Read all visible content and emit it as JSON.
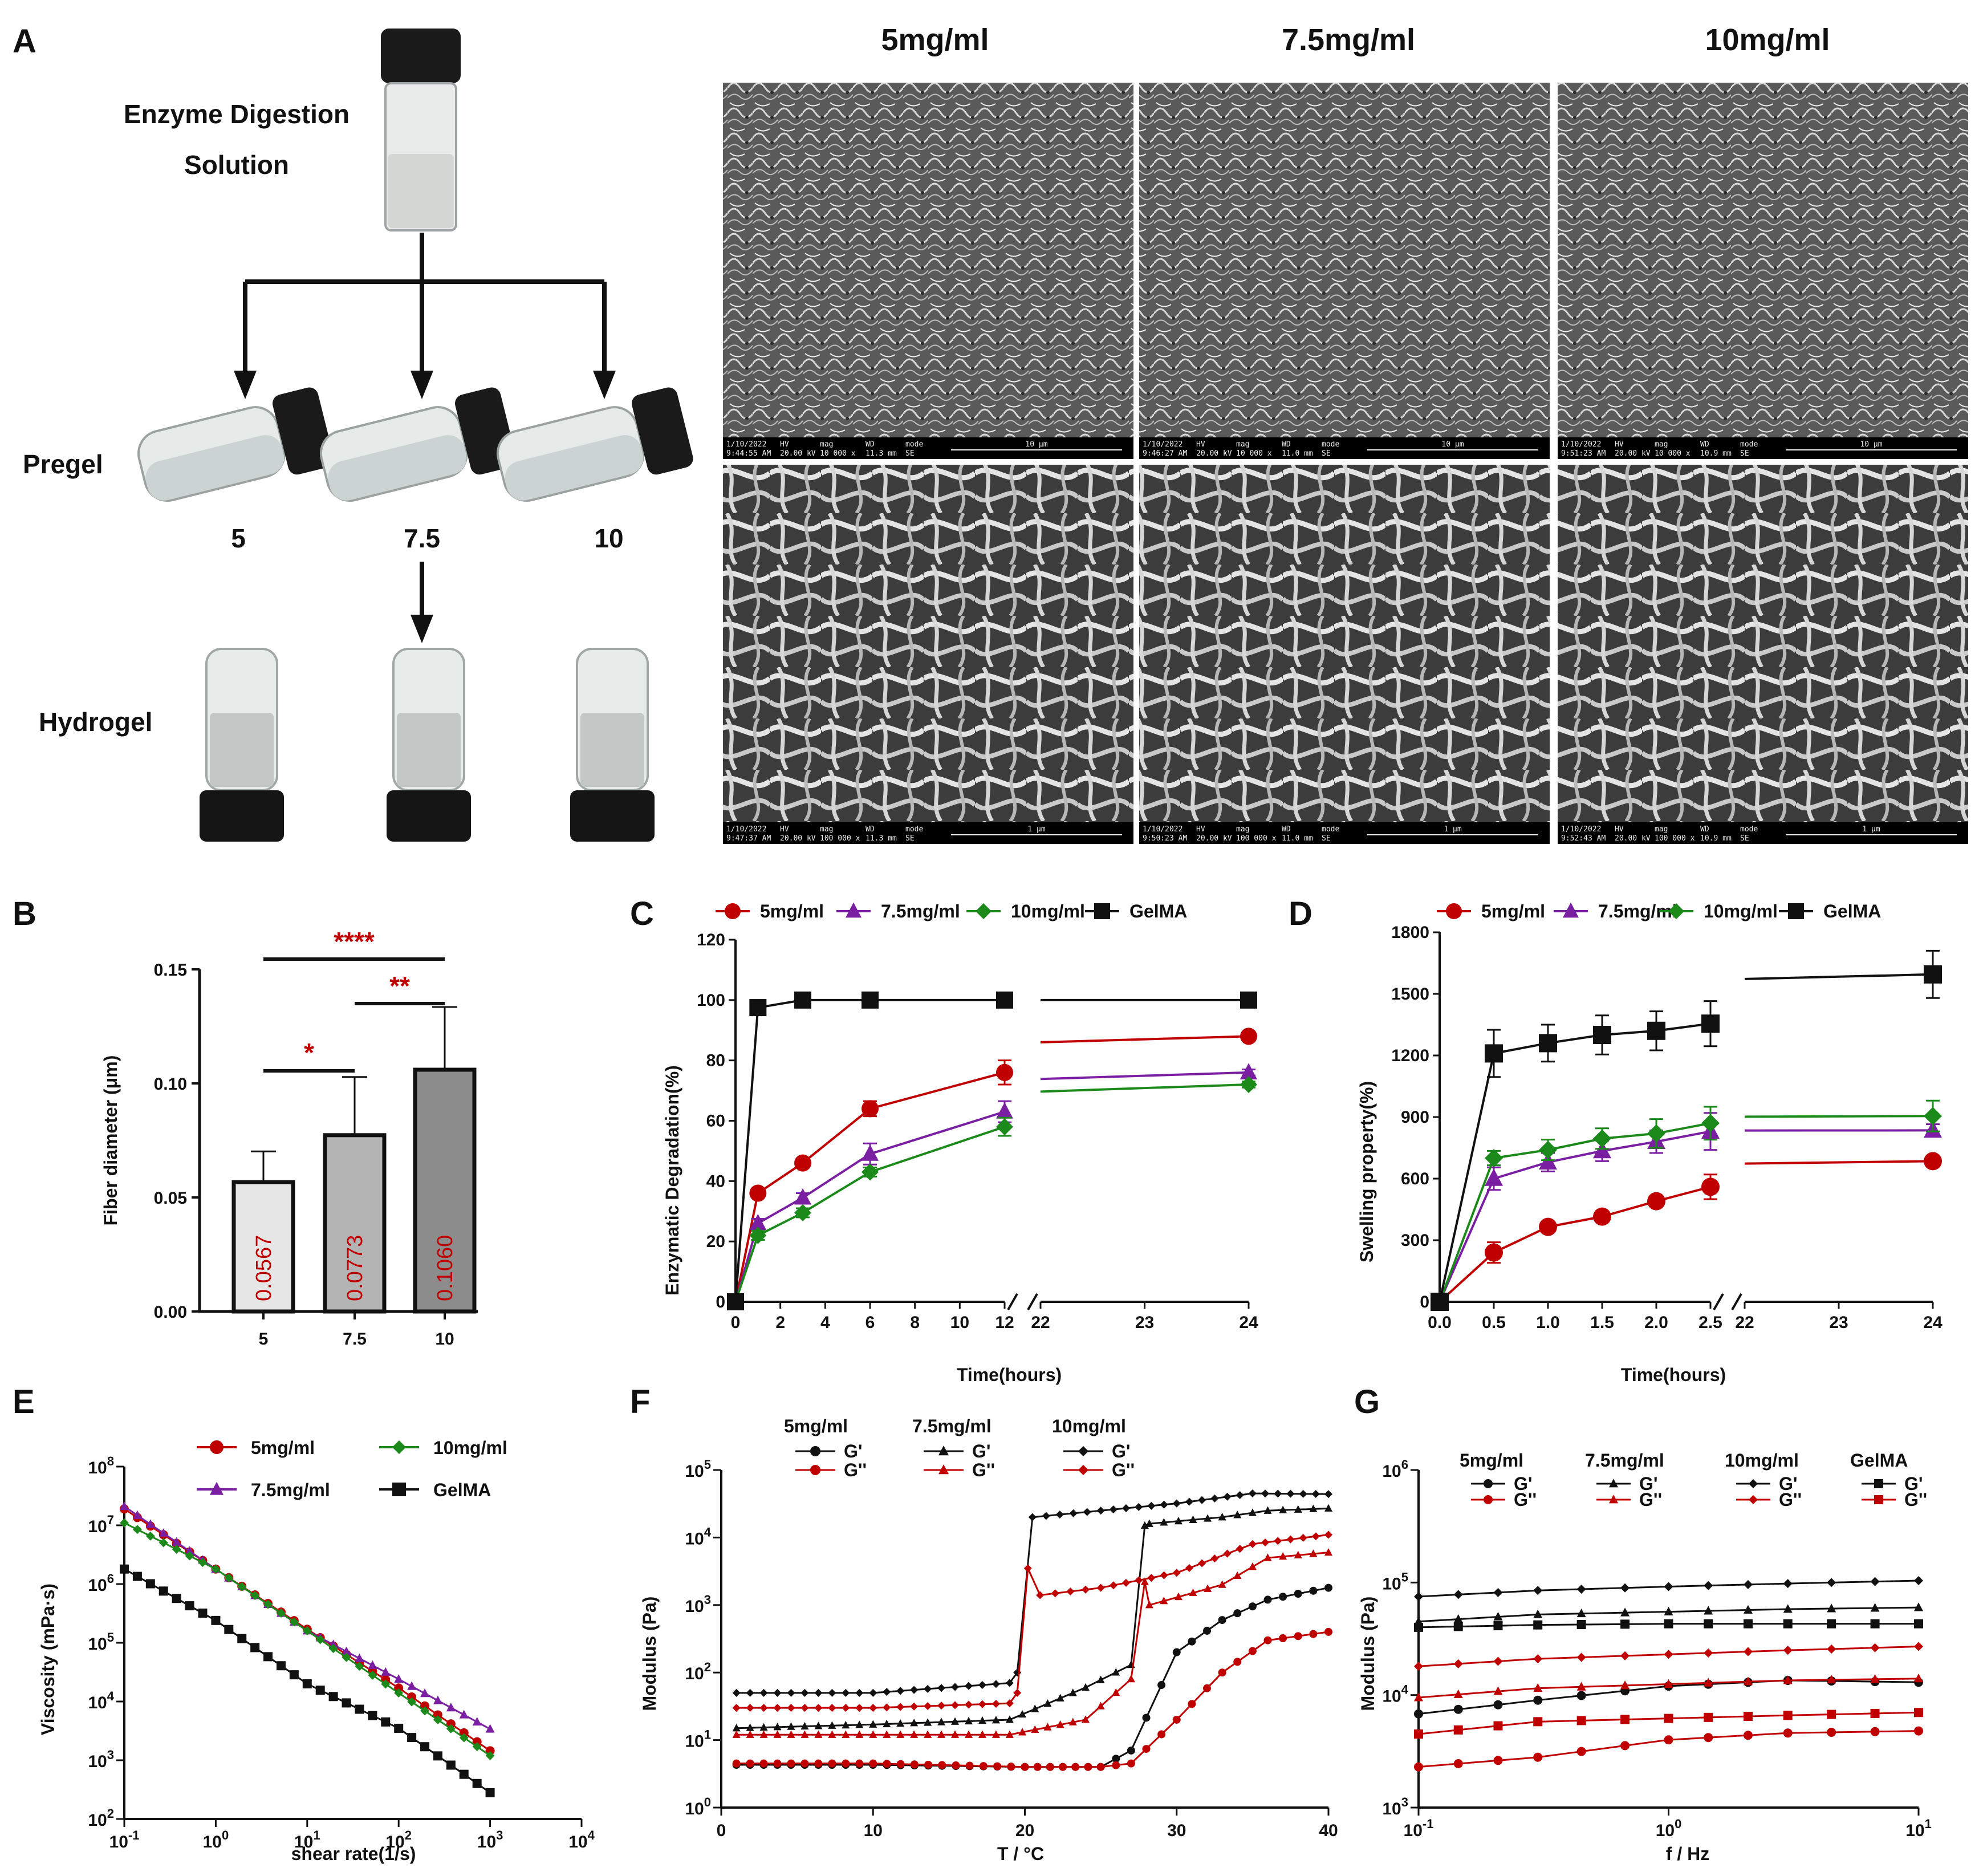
{
  "panel_letters": [
    "A",
    "B",
    "C",
    "D",
    "E",
    "F",
    "G"
  ],
  "panel_a": {
    "vial_label": "Enzyme Digestion Solution",
    "vial_label_line1": "Enzyme Digestion",
    "vial_label_line2": "Solution",
    "row_pregel": "Pregel",
    "row_hydrogel": "Hydrogel",
    "concentrations": [
      "5",
      "7.5",
      "10"
    ],
    "sem_headers": [
      "5mg/ml",
      "7.5mg/ml",
      "10mg/ml"
    ],
    "sem_top_info": [
      {
        "datetime": "1/10/2022 9:44:55 AM",
        "hv": "20.00 kV",
        "mag": "10 000 x",
        "wd": "11.3 mm",
        "mode": "SE",
        "scale": "10 μm"
      },
      {
        "datetime": "1/10/2022 9:46:27 AM",
        "hv": "20.00 kV",
        "mag": "10 000 x",
        "wd": "11.0 mm",
        "mode": "SE",
        "scale": "10 μm"
      },
      {
        "datetime": "1/10/2022 9:51:23 AM",
        "hv": "20.00 kV",
        "mag": "10 000 x",
        "wd": "10.9 mm",
        "mode": "SE",
        "scale": "10 μm"
      }
    ],
    "sem_bottom_info": [
      {
        "datetime": "1/10/2022 9:47:37 AM",
        "hv": "20.00 kV",
        "mag": "100 000 x",
        "wd": "11.3 mm",
        "mode": "SE",
        "scale": "1 μm"
      },
      {
        "datetime": "1/10/2022 9:50:23 AM",
        "hv": "20.00 kV",
        "mag": "100 000 x",
        "wd": "11.0 mm",
        "mode": "SE",
        "scale": "1 μm"
      },
      {
        "datetime": "1/10/2022 9:52:43 AM",
        "hv": "20.00 kV",
        "mag": "100 000 x",
        "wd": "10.9 mm",
        "mode": "SE",
        "scale": "1 μm"
      }
    ],
    "sem_field_labels": {
      "hv": "HV",
      "mag": "mag",
      "wd": "WD",
      "mode": "mode"
    }
  },
  "colors": {
    "red": "#c00000",
    "purple": "#7b1fa2",
    "green": "#1b8a1b",
    "black": "#111111",
    "bar_light": "#e6e6e6",
    "bar_mid": "#b4b4b4",
    "bar_dark": "#8c8c8c"
  },
  "chart_data": [
    {
      "id": "B",
      "type": "bar",
      "categories": [
        "5",
        "7.5",
        "10"
      ],
      "values": [
        0.0567,
        0.0773,
        0.106
      ],
      "errors": [
        0.0135,
        0.0255,
        0.0275
      ],
      "value_labels": [
        "0.0567",
        "0.0773",
        "0.1060"
      ],
      "ylabel": "Fiber diameter (μm)",
      "ylim": [
        0,
        0.15
      ],
      "yticks": [
        0.0,
        0.05,
        0.1,
        0.15
      ],
      "ytick_labels": [
        "0.00",
        "0.05",
        "0.10",
        "0.15"
      ],
      "significance": [
        {
          "from": "5",
          "to": "7.5",
          "label": "*"
        },
        {
          "from": "7.5",
          "to": "10",
          "label": "**"
        },
        {
          "from": "5",
          "to": "10",
          "label": "****"
        }
      ]
    },
    {
      "id": "C",
      "type": "line",
      "ylabel": "Enzymatic Degradation(%)",
      "xlabel": "Time(hours)",
      "ylim": [
        0,
        120
      ],
      "yticks": [
        0,
        20,
        40,
        60,
        80,
        100,
        120
      ],
      "xticks_left": [
        0,
        2,
        4,
        6,
        8,
        10,
        12
      ],
      "xticks_right": [
        22,
        23,
        24
      ],
      "legend": [
        "5mg/ml",
        "7.5mg/ml",
        "10mg/ml",
        "GelMA"
      ],
      "series": [
        {
          "name": "5mg/ml",
          "x": [
            0,
            1,
            3,
            6,
            12,
            24
          ],
          "y": [
            0,
            36,
            46,
            64,
            76,
            88
          ],
          "err": [
            0,
            1.5,
            1.5,
            2.5,
            4,
            1.5
          ]
        },
        {
          "name": "7.5mg/ml",
          "x": [
            0,
            1,
            3,
            6,
            12,
            24
          ],
          "y": [
            0,
            26,
            34.5,
            49,
            63,
            76
          ],
          "err": [
            0,
            1.5,
            1.5,
            3.5,
            3.5,
            1
          ]
        },
        {
          "name": "10mg/ml",
          "x": [
            0,
            1,
            3,
            6,
            12,
            24
          ],
          "y": [
            0,
            22,
            29.5,
            43,
            58,
            72
          ],
          "err": [
            0,
            1.5,
            1.5,
            1.5,
            3,
            1
          ]
        },
        {
          "name": "GelMA",
          "x": [
            0,
            1,
            3,
            6,
            12,
            24
          ],
          "y": [
            0,
            97.5,
            100,
            100,
            100,
            100
          ],
          "err": [
            0,
            1,
            0.5,
            0.5,
            0.5,
            0.5
          ]
        }
      ]
    },
    {
      "id": "D",
      "type": "line",
      "ylabel": "Swelling property(%)",
      "xlabel": "Time(hours)",
      "ylim": [
        0,
        1800
      ],
      "yticks": [
        0,
        300,
        600,
        900,
        1200,
        1500,
        1800
      ],
      "xticks_left": [
        0.0,
        0.5,
        1.0,
        1.5,
        2.0,
        2.5
      ],
      "xtick_labels_left": [
        "0.0",
        "0.5",
        "1.0",
        "1.5",
        "2.0",
        "2.5"
      ],
      "xticks_right": [
        22,
        23,
        24
      ],
      "legend": [
        "5mg/ml",
        "7.5mg/ml",
        "10mg/ml",
        "GelMA"
      ],
      "series": [
        {
          "name": "5mg/ml",
          "x": [
            0,
            0.5,
            1,
            1.5,
            2,
            2.5,
            24
          ],
          "y": [
            0,
            240,
            365,
            415,
            490,
            560,
            685
          ],
          "err": [
            0,
            50,
            20,
            20,
            25,
            60,
            15
          ]
        },
        {
          "name": "7.5mg/ml",
          "x": [
            0,
            0.5,
            1,
            1.5,
            2,
            2.5,
            24
          ],
          "y": [
            0,
            600,
            680,
            735,
            780,
            830,
            835
          ],
          "err": [
            0,
            55,
            45,
            50,
            55,
            90,
            30
          ]
        },
        {
          "name": "10mg/ml",
          "x": [
            0,
            0.5,
            1,
            1.5,
            2,
            2.5,
            24
          ],
          "y": [
            0,
            700,
            740,
            795,
            820,
            870,
            905
          ],
          "err": [
            0,
            35,
            50,
            50,
            70,
            80,
            75
          ]
        },
        {
          "name": "GelMA",
          "x": [
            0,
            0.5,
            1,
            1.5,
            2,
            2.5,
            24
          ],
          "y": [
            0,
            1210,
            1260,
            1300,
            1320,
            1355,
            1595
          ],
          "err": [
            0,
            115,
            90,
            95,
            95,
            110,
            115
          ]
        }
      ]
    },
    {
      "id": "E",
      "type": "line",
      "scale": "log-log",
      "ylabel": "Viscosity (mPa·s)",
      "xlabel": "shear rate(1/s)",
      "xlim_exp": [
        -1,
        4
      ],
      "ylim_exp": [
        2,
        8
      ],
      "legend": [
        "5mg/ml",
        "10mg/ml",
        "7.5mg/ml",
        "GelMA"
      ],
      "series": [
        {
          "name": "5mg/ml",
          "x": [
            0.1,
            1,
            10,
            100,
            1000
          ],
          "y": [
            19000000,
            1800000,
            170000,
            17000,
            1450
          ]
        },
        {
          "name": "7.5mg/ml",
          "x": [
            0.1,
            1,
            10,
            100,
            1000
          ],
          "y": [
            21000000,
            1800000,
            160000,
            24000,
            3400
          ]
        },
        {
          "name": "10mg/ml",
          "x": [
            0.1,
            1,
            10,
            100,
            1000
          ],
          "y": [
            11000000,
            1800000,
            160000,
            14000,
            1200
          ]
        },
        {
          "name": "GelMA",
          "x": [
            0.1,
            1,
            10,
            100,
            1000
          ],
          "y": [
            1800000,
            240000,
            20000,
            3500,
            280
          ]
        }
      ]
    },
    {
      "id": "F",
      "type": "line",
      "scale": "semilog-y",
      "ylabel": "Modulus (Pa)",
      "xlabel": "T / °C",
      "xlim": [
        0,
        40
      ],
      "xticks": [
        0,
        10,
        20,
        30,
        40
      ],
      "ylim_exp": [
        0,
        5
      ],
      "legend_groups": [
        "5mg/ml",
        "7.5mg/ml",
        "10mg/ml"
      ],
      "legend_items": [
        "G'",
        "G''"
      ],
      "series": [
        {
          "name": "5mg/ml G'",
          "x": [
            1,
            10,
            20,
            25,
            27,
            30,
            33,
            36,
            40
          ],
          "y": [
            4.3,
            4.3,
            4,
            4,
            7,
            200,
            600,
            1200,
            1800
          ]
        },
        {
          "name": "5mg/ml G''",
          "x": [
            1,
            10,
            20,
            25,
            27,
            30,
            33,
            36,
            40
          ],
          "y": [
            4.5,
            4.5,
            4,
            4,
            4.5,
            20,
            100,
            300,
            400
          ]
        },
        {
          "name": "7.5mg/ml G'",
          "x": [
            1,
            10,
            19,
            24,
            27,
            27.9,
            28.2,
            33,
            36,
            40
          ],
          "y": [
            15,
            17,
            20,
            60,
            130,
            15000,
            16000,
            20000,
            25000,
            27000
          ]
        },
        {
          "name": "7.5mg/ml G''",
          "x": [
            1,
            10,
            19,
            24,
            27,
            27.9,
            28.2,
            33,
            36,
            40
          ],
          "y": [
            12,
            12,
            12,
            20,
            80,
            2200,
            1000,
            2000,
            5000,
            6000
          ]
        },
        {
          "name": "10mg/ml G'",
          "x": [
            1,
            10,
            19,
            19.5,
            20.5,
            25,
            30,
            35,
            40
          ],
          "y": [
            50,
            50,
            70,
            100,
            20000,
            25000,
            32000,
            45000,
            44000
          ]
        },
        {
          "name": "10mg/ml G''",
          "x": [
            1,
            10,
            19,
            19.5,
            20.2,
            21,
            25,
            30,
            35,
            40
          ],
          "y": [
            30,
            30,
            35,
            50,
            3500,
            1400,
            1800,
            3000,
            8000,
            11000
          ]
        }
      ]
    },
    {
      "id": "G",
      "type": "line",
      "scale": "log-log",
      "ylabel": "Modulus (Pa)",
      "xlabel": "f / Hz",
      "xlim_exp": [
        -1,
        1
      ],
      "ylim_exp": [
        3,
        6
      ],
      "legend_groups": [
        "5mg/ml",
        "7.5mg/ml",
        "10mg/ml",
        "GelMA"
      ],
      "legend_items": [
        "G'",
        "G''"
      ],
      "series": [
        {
          "name": "5mg/ml G'",
          "x": [
            0.1,
            0.3,
            1,
            3,
            10
          ],
          "y": [
            6800,
            9000,
            12000,
            13500,
            13000
          ]
        },
        {
          "name": "5mg/ml G''",
          "x": [
            0.1,
            0.3,
            1,
            3,
            10
          ],
          "y": [
            2300,
            2800,
            4000,
            4600,
            4800
          ]
        },
        {
          "name": "7.5mg/ml G'",
          "x": [
            0.1,
            0.3,
            1,
            3,
            10
          ],
          "y": [
            45000,
            52000,
            55000,
            58000,
            60000
          ]
        },
        {
          "name": "7.5mg/ml G''",
          "x": [
            0.1,
            0.3,
            1,
            3,
            10
          ],
          "y": [
            9500,
            11500,
            12500,
            13500,
            14000
          ]
        },
        {
          "name": "10mg/ml G'",
          "x": [
            0.1,
            0.3,
            1,
            3,
            10
          ],
          "y": [
            75000,
            85000,
            92000,
            98000,
            104000
          ]
        },
        {
          "name": "10mg/ml G''",
          "x": [
            0.1,
            0.3,
            1,
            3,
            10
          ],
          "y": [
            18000,
            21000,
            23000,
            25000,
            27000
          ]
        },
        {
          "name": "GelMA G'",
          "x": [
            0.1,
            0.3,
            1,
            3,
            10
          ],
          "y": [
            40000,
            42000,
            43000,
            43000,
            43000
          ]
        },
        {
          "name": "GelMA G''",
          "x": [
            0.1,
            0.3,
            1,
            3,
            10
          ],
          "y": [
            4500,
            5800,
            6200,
            6600,
            7000
          ]
        }
      ]
    }
  ]
}
